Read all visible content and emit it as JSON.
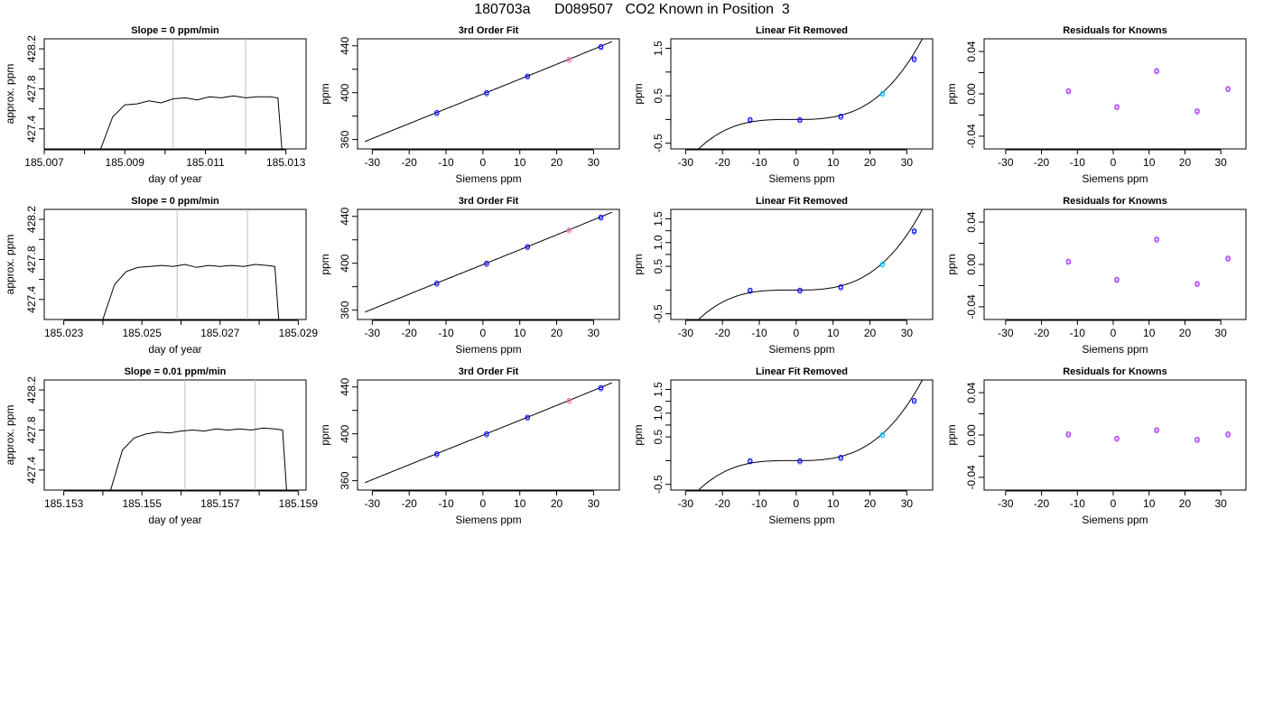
{
  "page_title": "180703a      D089507   CO2 Known in Position  3",
  "colors": {
    "series_line": "#000000",
    "window_marker": "#bebebe",
    "known_point": "#0000ff",
    "known_point_alt": "#ff69b4",
    "known_point_light": "#00bfff",
    "residual_point": "#a020f0"
  },
  "chart_data": [
    {
      "type": "line",
      "title": "Slope =  0  ppm/min",
      "xlabel": "day of year",
      "ylabel": "approx. ppm",
      "xlim": [
        185.007,
        185.0135
      ],
      "ylim": [
        427.2,
        428.3
      ],
      "xticks": [
        "185.007",
        "185.009",
        "185.011",
        "185.013"
      ],
      "xtick_values": [
        185.007,
        185.009,
        185.011,
        185.013
      ],
      "yticks": [
        "427.4",
        "427.8",
        "428.2"
      ],
      "ytick_values": [
        427.4,
        427.8,
        428.2
      ],
      "window_lines": [
        185.0102,
        185.012
      ],
      "x": [
        185.0084,
        185.0087,
        185.009,
        185.0093,
        185.0096,
        185.0099,
        185.0102,
        185.0105,
        185.0108,
        185.0111,
        185.0114,
        185.0117,
        185.012,
        185.0123,
        185.0126,
        185.0128,
        185.0129
      ],
      "y": [
        427.2,
        427.52,
        427.64,
        427.65,
        427.68,
        427.66,
        427.7,
        427.71,
        427.69,
        427.72,
        427.71,
        427.73,
        427.71,
        427.72,
        427.72,
        427.71,
        427.2
      ]
    },
    {
      "type": "line",
      "title": "3rd Order Fit",
      "xlabel": "Siemens ppm",
      "ylabel": "ppm",
      "xlim": [
        -34,
        37
      ],
      "ylim": [
        352,
        446
      ],
      "xticks": [
        "-30",
        "-20",
        "-10",
        "0",
        "10",
        "20",
        "30"
      ],
      "xtick_values": [
        -30,
        -20,
        -10,
        0,
        10,
        20,
        30
      ],
      "yticks": [
        "360",
        "400",
        "440"
      ],
      "ytick_values": [
        360,
        400,
        440
      ],
      "fit": {
        "coef": [
          398.88,
          1.2625,
          0.000112,
          8.8e-06
        ]
      },
      "points": [
        {
          "x": -12.5,
          "y": 383.1,
          "c": "known_point"
        },
        {
          "x": 1.0,
          "y": 400.1,
          "c": "known_point"
        },
        {
          "x": 12.1,
          "y": 414.3,
          "c": "known_point"
        },
        {
          "x": 23.4,
          "y": 428.6,
          "c": "known_point_alt"
        },
        {
          "x": 32.0,
          "y": 439.5,
          "c": "known_point"
        }
      ]
    },
    {
      "type": "line",
      "title": "Linear Fit Removed",
      "xlabel": "Siemens ppm",
      "ylabel": "ppm",
      "xlim": [
        -34,
        37
      ],
      "ylim": [
        -0.62,
        1.7
      ],
      "xticks": [
        "-30",
        "-20",
        "-10",
        "0",
        "10",
        "20",
        "30"
      ],
      "xtick_values": [
        -30,
        -20,
        -10,
        0,
        10,
        20,
        30
      ],
      "yticks": [
        "-0.5",
        "0.5",
        "1.5"
      ],
      "ytick_values": [
        -0.5,
        0.5,
        1.5
      ],
      "fit": {
        "coef": [
          0.0,
          0.0,
          0.000135,
          3.85e-05
        ]
      },
      "points": [
        {
          "x": -12.5,
          "y": 0.0,
          "c": "known_point"
        },
        {
          "x": 1.0,
          "y": 0.0,
          "c": "known_point"
        },
        {
          "x": 12.1,
          "y": 0.07,
          "c": "known_point"
        },
        {
          "x": 23.4,
          "y": 0.55,
          "c": "known_point_light"
        },
        {
          "x": 32.0,
          "y": 1.28,
          "c": "known_point"
        }
      ]
    },
    {
      "type": "scatter",
      "title": "Residuals for Knowns",
      "xlabel": "Siemens ppm",
      "ylabel": "ppm",
      "xlim": [
        -36,
        37
      ],
      "ylim": [
        -0.052,
        0.052
      ],
      "xticks": [
        "-30",
        "-20",
        "-10",
        "0",
        "10",
        "20",
        "30"
      ],
      "xtick_values": [
        -30,
        -20,
        -10,
        0,
        10,
        20,
        30
      ],
      "yticks": [
        "-0.04",
        "0.00",
        "0.04"
      ],
      "ytick_values": [
        -0.04,
        0.0,
        0.04
      ],
      "points": [
        {
          "x": -12.5,
          "y": 0.003,
          "c": "residual_point"
        },
        {
          "x": 1.0,
          "y": -0.012,
          "c": "residual_point"
        },
        {
          "x": 12.1,
          "y": 0.022,
          "c": "residual_point"
        },
        {
          "x": 23.4,
          "y": -0.016,
          "c": "residual_point"
        },
        {
          "x": 32.0,
          "y": 0.005,
          "c": "residual_point"
        }
      ]
    },
    {
      "type": "line",
      "title": "Slope =  0  ppm/min",
      "xlabel": "day of year",
      "ylabel": "approx. ppm",
      "xlim": [
        185.0225,
        185.0292
      ],
      "ylim": [
        427.2,
        428.3
      ],
      "xticks": [
        "185.023",
        "185.025",
        "185.027",
        "185.029"
      ],
      "xtick_values": [
        185.023,
        185.025,
        185.027,
        185.029
      ],
      "yticks": [
        "427.4",
        "427.8",
        "428.2"
      ],
      "ytick_values": [
        427.4,
        427.8,
        428.2
      ],
      "window_lines": [
        185.0259,
        185.0277
      ],
      "x": [
        185.024,
        185.0243,
        185.0246,
        185.0249,
        185.0252,
        185.0255,
        185.0258,
        185.0261,
        185.0264,
        185.0267,
        185.027,
        185.0273,
        185.0276,
        185.0279,
        185.0282,
        185.0284,
        185.0285
      ],
      "y": [
        427.2,
        427.55,
        427.68,
        427.72,
        427.73,
        427.74,
        427.73,
        427.75,
        427.72,
        427.74,
        427.73,
        427.74,
        427.73,
        427.75,
        427.74,
        427.73,
        427.2
      ]
    },
    {
      "type": "line",
      "title": "3rd Order Fit",
      "xlabel": "Siemens ppm",
      "ylabel": "ppm",
      "xlim": [
        -34,
        37
      ],
      "ylim": [
        352,
        446
      ],
      "xticks": [
        "-30",
        "-20",
        "-10",
        "0",
        "10",
        "20",
        "30"
      ],
      "xtick_values": [
        -30,
        -20,
        -10,
        0,
        10,
        20,
        30
      ],
      "yticks": [
        "360",
        "400",
        "440"
      ],
      "ytick_values": [
        360,
        400,
        440
      ],
      "fit": {
        "coef": [
          398.88,
          1.2625,
          0.000112,
          8.8e-06
        ]
      },
      "points": [
        {
          "x": -12.5,
          "y": 383.1,
          "c": "known_point"
        },
        {
          "x": 1.0,
          "y": 400.1,
          "c": "known_point"
        },
        {
          "x": 12.1,
          "y": 414.3,
          "c": "known_point"
        },
        {
          "x": 23.4,
          "y": 428.6,
          "c": "known_point_alt"
        },
        {
          "x": 32.0,
          "y": 439.5,
          "c": "known_point"
        }
      ]
    },
    {
      "type": "line",
      "title": "Linear Fit Removed",
      "xlabel": "Siemens ppm",
      "ylabel": "ppm",
      "xlim": [
        -34,
        37
      ],
      "ylim": [
        -0.62,
        1.7
      ],
      "xticks": [
        "-30",
        "-20",
        "-10",
        "0",
        "10",
        "20",
        "30"
      ],
      "xtick_values": [
        -30,
        -20,
        -10,
        0,
        10,
        20,
        30
      ],
      "yticks": [
        "-0.5",
        "0.5",
        "1.0",
        "1.5"
      ],
      "ytick_values": [
        -0.5,
        0.5,
        1.0,
        1.5
      ],
      "fit": {
        "coef": [
          0.0,
          0.0,
          0.000135,
          3.85e-05
        ]
      },
      "points": [
        {
          "x": -12.5,
          "y": 0.0,
          "c": "known_point"
        },
        {
          "x": 1.0,
          "y": 0.0,
          "c": "known_point"
        },
        {
          "x": 12.1,
          "y": 0.07,
          "c": "known_point"
        },
        {
          "x": 23.4,
          "y": 0.55,
          "c": "known_point_light"
        },
        {
          "x": 32.0,
          "y": 1.25,
          "c": "known_point"
        }
      ]
    },
    {
      "type": "scatter",
      "title": "Residuals for Knowns",
      "xlabel": "Siemens ppm",
      "ylabel": "ppm",
      "xlim": [
        -36,
        37
      ],
      "ylim": [
        -0.052,
        0.052
      ],
      "xticks": [
        "-30",
        "-20",
        "-10",
        "0",
        "10",
        "20",
        "30"
      ],
      "xtick_values": [
        -30,
        -20,
        -10,
        0,
        10,
        20,
        30
      ],
      "yticks": [
        "-0.04",
        "0.00",
        "0.04"
      ],
      "ytick_values": [
        -0.04,
        0.0,
        0.04
      ],
      "points": [
        {
          "x": -12.5,
          "y": 0.003,
          "c": "residual_point"
        },
        {
          "x": 1.0,
          "y": -0.014,
          "c": "residual_point"
        },
        {
          "x": 12.1,
          "y": 0.024,
          "c": "residual_point"
        },
        {
          "x": 23.4,
          "y": -0.018,
          "c": "residual_point"
        },
        {
          "x": 32.0,
          "y": 0.006,
          "c": "residual_point"
        }
      ]
    },
    {
      "type": "line",
      "title": "Slope =  0.01  ppm/min",
      "xlabel": "day of year",
      "ylabel": "approx. ppm",
      "xlim": [
        185.1525,
        185.1592
      ],
      "ylim": [
        427.2,
        428.3
      ],
      "xticks": [
        "185.153",
        "185.155",
        "185.157",
        "185.159"
      ],
      "xtick_values": [
        185.153,
        185.155,
        185.157,
        185.159
      ],
      "yticks": [
        "427.4",
        "427.8",
        "428.2"
      ],
      "ytick_values": [
        427.4,
        427.8,
        428.2
      ],
      "window_lines": [
        185.1561,
        185.1579
      ],
      "x": [
        185.1542,
        185.1545,
        185.1548,
        185.1551,
        185.1554,
        185.1557,
        185.156,
        185.1563,
        185.1566,
        185.1569,
        185.1572,
        185.1575,
        185.1578,
        185.1581,
        185.1584,
        185.1586,
        185.1587
      ],
      "y": [
        427.2,
        427.6,
        427.72,
        427.76,
        427.78,
        427.77,
        427.79,
        427.8,
        427.79,
        427.81,
        427.8,
        427.81,
        427.8,
        427.82,
        427.81,
        427.8,
        427.2
      ]
    },
    {
      "type": "line",
      "title": "3rd Order Fit",
      "xlabel": "Siemens ppm",
      "ylabel": "ppm",
      "xlim": [
        -34,
        37
      ],
      "ylim": [
        352,
        446
      ],
      "xticks": [
        "-30",
        "-20",
        "-10",
        "0",
        "10",
        "20",
        "30"
      ],
      "xtick_values": [
        -30,
        -20,
        -10,
        0,
        10,
        20,
        30
      ],
      "yticks": [
        "360",
        "400",
        "440"
      ],
      "ytick_values": [
        360,
        400,
        440
      ],
      "fit": {
        "coef": [
          398.88,
          1.2625,
          0.000112,
          8.8e-06
        ]
      },
      "points": [
        {
          "x": -12.5,
          "y": 383.1,
          "c": "known_point"
        },
        {
          "x": 1.0,
          "y": 400.1,
          "c": "known_point"
        },
        {
          "x": 12.1,
          "y": 414.3,
          "c": "known_point"
        },
        {
          "x": 23.4,
          "y": 428.6,
          "c": "known_point_alt"
        },
        {
          "x": 32.0,
          "y": 439.5,
          "c": "known_point"
        }
      ]
    },
    {
      "type": "line",
      "title": "Linear Fit Removed",
      "xlabel": "Siemens ppm",
      "ylabel": "ppm",
      "xlim": [
        -34,
        37
      ],
      "ylim": [
        -0.62,
        1.7
      ],
      "xticks": [
        "-30",
        "-20",
        "-10",
        "0",
        "10",
        "20",
        "30"
      ],
      "xtick_values": [
        -30,
        -20,
        -10,
        0,
        10,
        20,
        30
      ],
      "yticks": [
        "-0.5",
        "0.5",
        "1.0",
        "1.5"
      ],
      "ytick_values": [
        -0.5,
        0.5,
        1.0,
        1.5
      ],
      "fit": {
        "coef": [
          0.0,
          0.0,
          0.000135,
          3.85e-05
        ]
      },
      "points": [
        {
          "x": -12.5,
          "y": 0.0,
          "c": "known_point"
        },
        {
          "x": 1.0,
          "y": 0.0,
          "c": "known_point"
        },
        {
          "x": 12.1,
          "y": 0.07,
          "c": "known_point"
        },
        {
          "x": 23.4,
          "y": 0.55,
          "c": "known_point_light"
        },
        {
          "x": 32.0,
          "y": 1.27,
          "c": "known_point"
        }
      ]
    },
    {
      "type": "scatter",
      "title": "Residuals for Knowns",
      "xlabel": "Siemens ppm",
      "ylabel": "ppm",
      "xlim": [
        -36,
        37
      ],
      "ylim": [
        -0.052,
        0.052
      ],
      "xticks": [
        "-30",
        "-20",
        "-10",
        "0",
        "10",
        "20",
        "30"
      ],
      "xtick_values": [
        -30,
        -20,
        -10,
        0,
        10,
        20,
        30
      ],
      "yticks": [
        "-0.04",
        "0.00",
        "0.04"
      ],
      "ytick_values": [
        -0.04,
        0.0,
        0.04
      ],
      "points": [
        {
          "x": -12.5,
          "y": 0.001,
          "c": "residual_point"
        },
        {
          "x": 1.0,
          "y": -0.003,
          "c": "residual_point"
        },
        {
          "x": 12.1,
          "y": 0.005,
          "c": "residual_point"
        },
        {
          "x": 23.4,
          "y": -0.004,
          "c": "residual_point"
        },
        {
          "x": 32.0,
          "y": 0.001,
          "c": "residual_point"
        }
      ]
    }
  ]
}
